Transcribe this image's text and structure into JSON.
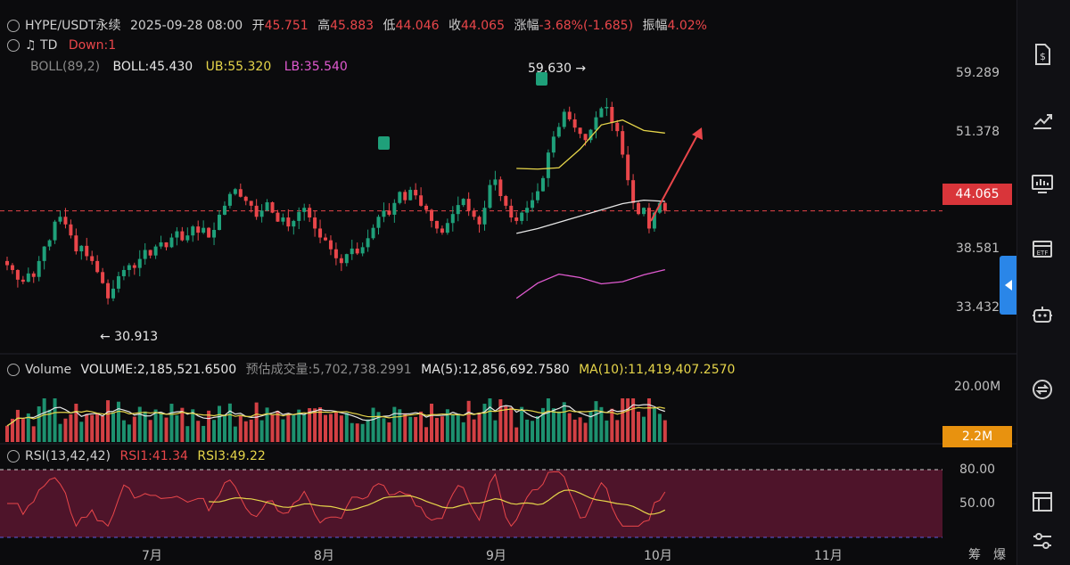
{
  "header": {
    "symbol": "HYPE/USDT永续",
    "datetime": "2025-09-28 08:00",
    "open_label": "开",
    "open": "45.751",
    "high_label": "高",
    "high": "45.883",
    "low_label": "低",
    "low": "44.046",
    "close_label": "收",
    "close": "44.065",
    "change_label": "涨幅",
    "change": "-3.68%(-1.685)",
    "amp_label": "振幅",
    "amp": "4.02%"
  },
  "td": {
    "label": "TD",
    "value": "Down:1"
  },
  "boll": {
    "label": "BOLL(89,2)",
    "mid": "BOLL:45.430",
    "ub": "UB:55.320",
    "lb": "LB:35.540"
  },
  "volume_panel": {
    "label": "Volume",
    "volume": "VOLUME:2,185,521.6500",
    "forecast": "预估成交量:5,702,738.2991",
    "ma5": "MA(5):12,856,692.7580",
    "ma10": "MA(10):11,419,407.2570",
    "axis_top": "20.00M",
    "current_tag": "2.2M"
  },
  "rsi_panel": {
    "label": "RSI(13,42,42)",
    "rsi1": "RSI1:41.34",
    "rsi3": "RSI3:49.22",
    "axis": [
      "80.00",
      "50.00"
    ]
  },
  "price_axis": [
    "59.289",
    "51.378",
    "38.581",
    "33.432"
  ],
  "current_price": "44.065",
  "annotations": {
    "high": "59.630 →",
    "low": "← 30.913",
    "td_marker": "9"
  },
  "time_axis": [
    "7月",
    "8月",
    "9月",
    "10月",
    "11月"
  ],
  "footer": {
    "a": "筹",
    "b": "爆"
  },
  "colors": {
    "up": "#1fa07a",
    "down": "#e9464a",
    "boll_mid": "#e6e6e6",
    "boll_ub": "#e6d54a",
    "boll_lb": "#e05ad0",
    "accent": "#2a86e8"
  },
  "sidebar_icons": [
    "dollar-doc-icon",
    "trend-chart-icon",
    "monitor-chart-icon",
    "etf-icon",
    "robot-icon",
    "swap-icon",
    "layout-icon",
    "settings-sliders-icon"
  ],
  "chart_data": {
    "type": "candlestick",
    "price_range": [
      27.5,
      64.0
    ],
    "price_ticks": [
      59.289,
      51.378,
      38.581,
      33.432
    ],
    "current_price": 44.065,
    "annotated_high": 59.63,
    "annotated_low": 30.913,
    "ohlc_close": [
      36.2,
      35.5,
      34.1,
      33.8,
      35.0,
      34.5,
      36.8,
      38.9,
      39.8,
      42.5,
      43.2,
      42.1,
      40.5,
      38.2,
      39.0,
      37.5,
      36.8,
      35.2,
      33.6,
      31.4,
      32.8,
      34.6,
      35.5,
      36.2,
      35.8,
      37.1,
      38.4,
      37.6,
      38.9,
      39.5,
      38.8,
      40.2,
      41.1,
      39.8,
      40.5,
      41.8,
      40.9,
      41.6,
      40.2,
      41.3,
      43.5,
      44.8,
      46.5,
      47.2,
      46.1,
      45.5,
      44.8,
      43.2,
      44.1,
      45.3,
      43.8,
      42.5,
      43.1,
      41.8,
      42.6,
      43.9,
      44.5,
      43.1,
      41.5,
      40.2,
      39.8,
      38.5,
      37.2,
      36.5,
      37.8,
      38.6,
      37.9,
      38.8,
      40.1,
      41.6,
      43.2,
      44.1,
      43.5,
      45.2,
      46.8,
      45.6,
      47.1,
      46.3,
      44.8,
      44.2,
      42.6,
      41.5,
      40.9,
      42.3,
      43.6,
      44.9,
      45.8,
      44.1,
      43.2,
      42.1,
      44.5,
      47.8,
      48.6,
      46.2,
      44.8,
      43.1,
      42.6,
      43.8,
      44.5,
      45.6,
      46.9,
      48.8,
      52.5,
      54.8,
      56.2,
      58.4,
      57.3,
      56.1,
      55.2,
      54.3,
      55.8,
      57.6,
      58.9,
      59.1,
      56.8,
      55.6,
      52.2,
      48.5,
      45.2,
      43.6,
      44.5,
      41.5,
      43.8,
      45.2,
      44.065
    ],
    "boll_mid": {
      "start_index": 96,
      "values": [
        40.8,
        41.5,
        42.4,
        43.3,
        44.2,
        45.1,
        45.6,
        45.43
      ]
    },
    "boll_ub": {
      "start_index": 96,
      "values": [
        50.2,
        50.1,
        50.3,
        53.0,
        56.5,
        57.2,
        55.7,
        55.32
      ]
    },
    "boll_lb": {
      "start_index": 96,
      "values": [
        31.4,
        33.6,
        34.9,
        34.4,
        33.5,
        33.8,
        34.8,
        35.54
      ]
    },
    "volume_max": 20000000,
    "rsi_levels": [
      80,
      50
    ]
  }
}
